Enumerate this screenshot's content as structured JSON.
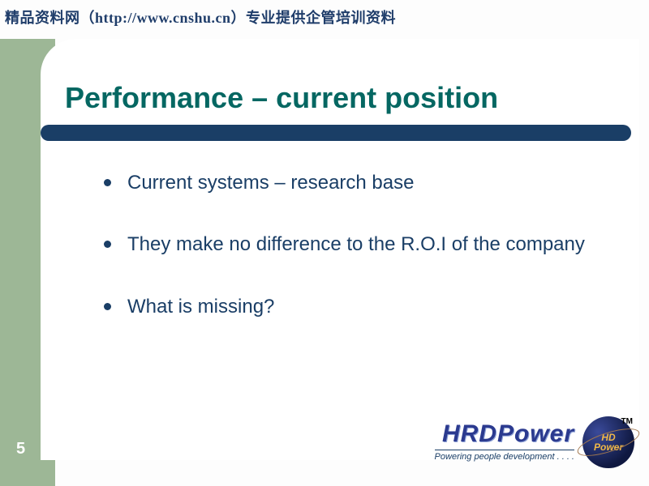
{
  "watermark": "精品资料网（http://www.cnshu.cn）专业提供企管培训资料",
  "slide": {
    "title": "Performance – current position",
    "bullets": [
      "Current systems – research base",
      "They make no difference to the R.O.I of the company",
      "What is missing?"
    ],
    "number": "5"
  },
  "logo": {
    "main": "HRDPower",
    "tagline": "Powering people development . . . .",
    "orb_text_top": "HD",
    "orb_text_bottom": "Power",
    "tm": "TM"
  },
  "colors": {
    "sidebar": "#9db796",
    "accent": "#1a3e66",
    "title": "#056762",
    "background": "#fdfdfd",
    "card": "#ffffff"
  }
}
